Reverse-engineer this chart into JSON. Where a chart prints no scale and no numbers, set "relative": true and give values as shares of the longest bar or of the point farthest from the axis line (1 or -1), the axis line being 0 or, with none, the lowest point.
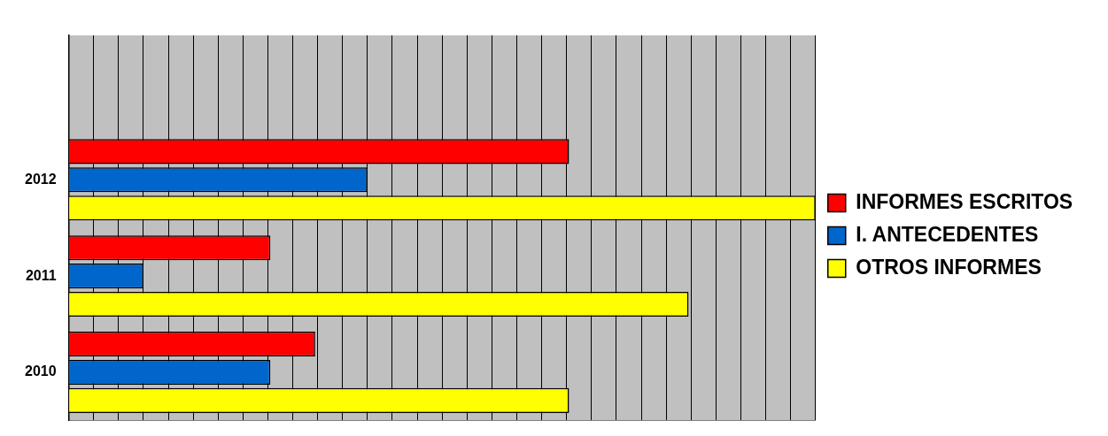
{
  "chart_data": {
    "type": "bar",
    "orientation": "horizontal",
    "relative": true,
    "grid": "x",
    "legend": "right",
    "categories": [
      null,
      "2012",
      "2011",
      "2010"
    ],
    "series": [
      {
        "name": "INFORMES ESCRITOS",
        "color": "#ff0000",
        "values": [
          null,
          0.67,
          0.27,
          0.33
        ]
      },
      {
        "name": "I. ANTECEDENTES",
        "color": "#0066cc",
        "values": [
          null,
          0.4,
          0.1,
          0.27
        ]
      },
      {
        "name": "OTROS INFORMES",
        "color": "#ffff00",
        "values": [
          null,
          1,
          0.83,
          0.67
        ]
      }
    ]
  }
}
